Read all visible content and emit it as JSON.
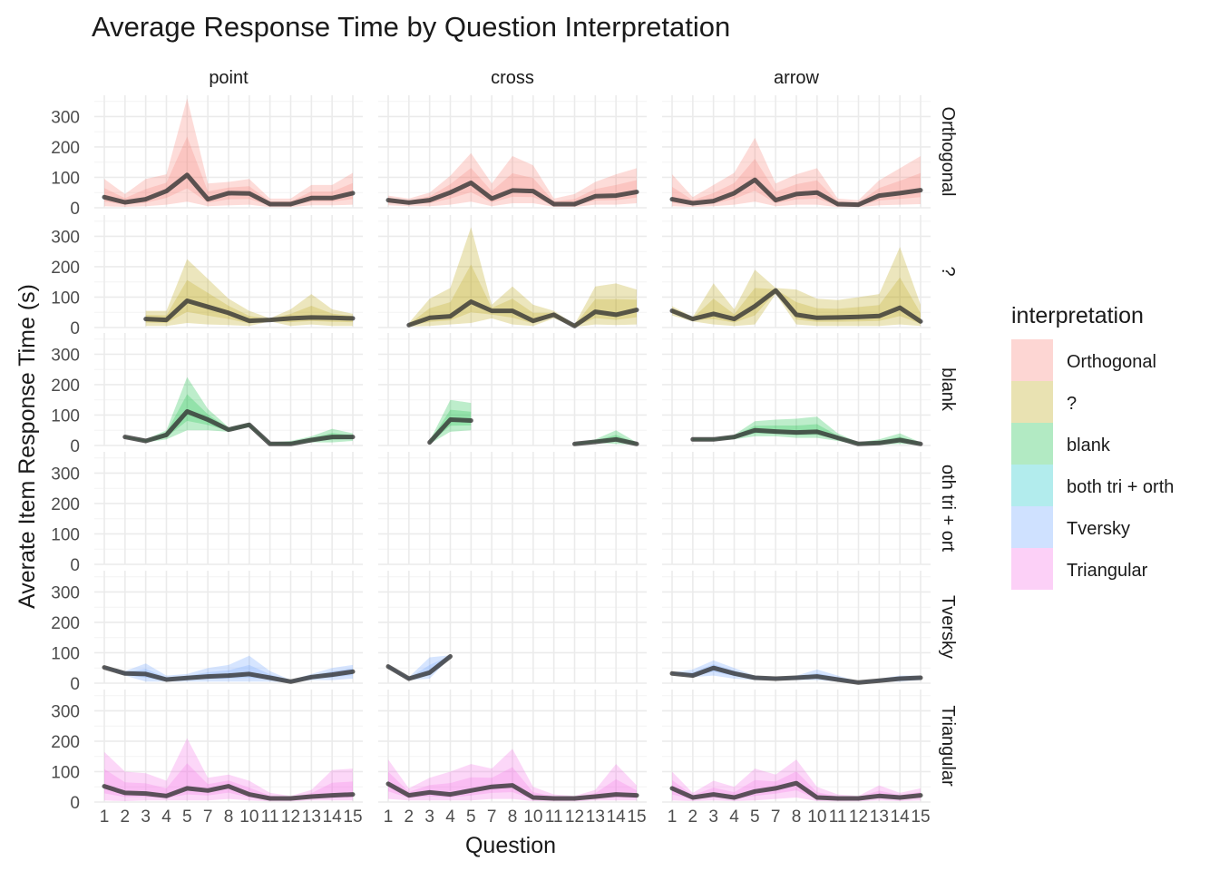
{
  "chart_data": {
    "type": "line",
    "title": "Average Response Time by Question Interpretation",
    "xlabel": "Question",
    "ylabel": "Averate Item Response Time (s)",
    "x_ticks": [
      "1",
      "2",
      "3",
      "4",
      "5",
      "7",
      "8",
      "10",
      "11",
      "12",
      "13",
      "14",
      "15"
    ],
    "y_ticks": [
      "0",
      "100",
      "200",
      "300"
    ],
    "ylim": [
      0,
      370
    ],
    "columns": [
      "point",
      "cross",
      "arrow"
    ],
    "rows": [
      "Orthogonal",
      "?",
      "blank",
      "both tri + orth",
      "Tversky",
      "Triangular"
    ],
    "row_strip_labels": [
      "Orthogonal",
      "?",
      "blank",
      "oth tri + ort",
      "Tversky",
      "Triangular"
    ],
    "legend": {
      "title": "interpretation",
      "entries": [
        {
          "label": "Orthogonal",
          "color": "#F8766D"
        },
        {
          "label": "?",
          "color": "#B79F00"
        },
        {
          "label": "blank",
          "color": "#00BA38"
        },
        {
          "label": "both tri + orth",
          "color": "#00BFC4"
        },
        {
          "label": "Tversky",
          "color": "#619CFF"
        },
        {
          "label": "Triangular",
          "color": "#F564E3"
        }
      ]
    },
    "panels": [
      {
        "row": "Orthogonal",
        "col": "point",
        "mean": [
          35,
          18,
          28,
          55,
          108,
          28,
          48,
          47,
          12,
          12,
          32,
          32,
          48
        ],
        "upper": [
          95,
          45,
          95,
          110,
          360,
          80,
          85,
          95,
          30,
          30,
          75,
          75,
          115
        ],
        "lower": [
          5,
          3,
          5,
          10,
          20,
          5,
          8,
          10,
          2,
          2,
          8,
          8,
          10
        ]
      },
      {
        "row": "Orthogonal",
        "col": "cross",
        "mean": [
          25,
          17,
          25,
          50,
          82,
          30,
          57,
          55,
          12,
          12,
          38,
          40,
          52
        ],
        "upper": [
          40,
          30,
          50,
          105,
          180,
          80,
          170,
          140,
          30,
          45,
          85,
          110,
          130
        ],
        "lower": [
          8,
          5,
          5,
          10,
          20,
          5,
          15,
          15,
          3,
          3,
          10,
          10,
          15
        ]
      },
      {
        "row": "Orthogonal",
        "col": "arrow",
        "mean": [
          28,
          15,
          22,
          48,
          92,
          25,
          45,
          50,
          12,
          10,
          40,
          48,
          58
        ],
        "upper": [
          110,
          35,
          75,
          115,
          230,
          80,
          110,
          130,
          30,
          25,
          90,
          130,
          170
        ],
        "lower": [
          5,
          3,
          5,
          10,
          20,
          5,
          10,
          10,
          2,
          2,
          8,
          10,
          12
        ]
      },
      {
        "row": "?",
        "col": "point",
        "mean": [
          null,
          null,
          28,
          25,
          88,
          68,
          48,
          22,
          25,
          30,
          33,
          32,
          30
        ],
        "upper": [
          null,
          null,
          55,
          55,
          225,
          160,
          95,
          55,
          30,
          60,
          110,
          60,
          45
        ],
        "lower": [
          null,
          null,
          5,
          5,
          15,
          10,
          8,
          5,
          20,
          5,
          10,
          5,
          5
        ]
      },
      {
        "row": "?",
        "col": "cross",
        "mean": [
          null,
          8,
          32,
          37,
          85,
          55,
          55,
          22,
          42,
          5,
          52,
          42,
          58
        ],
        "upper": [
          null,
          15,
          95,
          130,
          330,
          75,
          135,
          75,
          55,
          10,
          135,
          145,
          125
        ],
        "lower": [
          null,
          3,
          5,
          10,
          15,
          30,
          10,
          5,
          30,
          2,
          10,
          8,
          10
        ]
      },
      {
        "row": "?",
        "col": "arrow",
        "mean": [
          55,
          28,
          45,
          28,
          70,
          122,
          42,
          32,
          33,
          35,
          38,
          65,
          20
        ],
        "upper": [
          70,
          35,
          145,
          60,
          190,
          130,
          125,
          95,
          90,
          100,
          110,
          265,
          75
        ],
        "lower": [
          40,
          20,
          10,
          5,
          10,
          110,
          10,
          5,
          5,
          5,
          5,
          10,
          5
        ]
      },
      {
        "row": "blank",
        "col": "point",
        "mean": [
          null,
          28,
          15,
          35,
          112,
          85,
          52,
          68,
          5,
          5,
          18,
          28,
          28
        ],
        "upper": [
          null,
          30,
          20,
          50,
          225,
          120,
          60,
          75,
          10,
          15,
          30,
          55,
          40
        ],
        "lower": [
          null,
          25,
          10,
          20,
          50,
          50,
          45,
          60,
          2,
          2,
          10,
          10,
          15
        ]
      },
      {
        "row": "blank",
        "col": "cross",
        "mean": [
          20,
          null,
          10,
          85,
          82,
          null,
          56,
          null,
          null,
          5,
          12,
          20,
          5
        ],
        "upper": [
          22,
          null,
          15,
          150,
          140,
          null,
          100,
          null,
          null,
          8,
          20,
          50,
          10
        ],
        "lower": [
          18,
          null,
          5,
          45,
          50,
          null,
          35,
          null,
          null,
          3,
          8,
          5,
          2
        ]
      },
      {
        "row": "blank",
        "col": "arrow",
        "mean": [
          null,
          20,
          20,
          28,
          50,
          46,
          43,
          45,
          25,
          5,
          8,
          18,
          5
        ],
        "upper": [
          null,
          25,
          25,
          35,
          80,
          85,
          88,
          95,
          40,
          10,
          20,
          40,
          10
        ],
        "lower": [
          null,
          15,
          15,
          20,
          30,
          30,
          25,
          25,
          15,
          2,
          2,
          5,
          2
        ]
      },
      {
        "row": "both tri + orth",
        "col": "point",
        "mean": [],
        "upper": [],
        "lower": []
      },
      {
        "row": "both tri + orth",
        "col": "cross",
        "mean": [],
        "upper": [],
        "lower": []
      },
      {
        "row": "both tri + orth",
        "col": "arrow",
        "mean": [],
        "upper": [],
        "lower": []
      },
      {
        "row": "Tversky",
        "col": "point",
        "mean": [
          52,
          32,
          30,
          12,
          17,
          22,
          25,
          30,
          18,
          5,
          20,
          28,
          38
        ],
        "upper": [
          55,
          40,
          65,
          25,
          30,
          50,
          60,
          90,
          40,
          10,
          30,
          50,
          60
        ],
        "lower": [
          50,
          25,
          5,
          5,
          5,
          5,
          5,
          5,
          5,
          2,
          10,
          10,
          15
        ]
      },
      {
        "row": "Tversky",
        "col": "cross",
        "mean": [
          55,
          15,
          35,
          88,
          null,
          null,
          null,
          18,
          null,
          5,
          null,
          null,
          2
        ],
        "upper": [
          60,
          20,
          85,
          92,
          null,
          null,
          null,
          22,
          null,
          8,
          null,
          null,
          5
        ],
        "lower": [
          50,
          10,
          15,
          85,
          null,
          null,
          null,
          15,
          null,
          2,
          null,
          null,
          0
        ]
      },
      {
        "row": "Tversky",
        "col": "arrow",
        "mean": [
          32,
          25,
          50,
          32,
          18,
          15,
          18,
          22,
          12,
          2,
          8,
          15,
          18
        ],
        "upper": [
          35,
          45,
          75,
          50,
          25,
          20,
          25,
          45,
          25,
          5,
          15,
          25,
          25
        ],
        "lower": [
          30,
          20,
          25,
          15,
          10,
          10,
          10,
          10,
          5,
          0,
          5,
          5,
          10
        ]
      },
      {
        "row": "Triangular",
        "col": "point",
        "mean": [
          52,
          30,
          28,
          20,
          45,
          38,
          52,
          25,
          12,
          12,
          18,
          22,
          25
        ],
        "upper": [
          165,
          100,
          95,
          70,
          210,
          80,
          90,
          70,
          30,
          20,
          40,
          105,
          110
        ],
        "lower": [
          5,
          3,
          5,
          5,
          5,
          5,
          10,
          5,
          2,
          2,
          5,
          5,
          5
        ]
      },
      {
        "row": "Triangular",
        "col": "cross",
        "mean": [
          60,
          22,
          32,
          25,
          38,
          50,
          55,
          15,
          12,
          12,
          18,
          25,
          22
        ],
        "upper": [
          140,
          45,
          80,
          100,
          125,
          110,
          175,
          50,
          25,
          20,
          40,
          125,
          55
        ],
        "lower": [
          10,
          5,
          5,
          5,
          5,
          10,
          10,
          3,
          2,
          2,
          5,
          5,
          5
        ]
      },
      {
        "row": "Triangular",
        "col": "arrow",
        "mean": [
          45,
          15,
          25,
          15,
          35,
          45,
          62,
          15,
          12,
          12,
          20,
          15,
          22
        ],
        "upper": [
          100,
          30,
          70,
          50,
          110,
          90,
          140,
          50,
          25,
          20,
          55,
          30,
          45
        ],
        "lower": [
          5,
          3,
          5,
          3,
          5,
          10,
          15,
          3,
          2,
          2,
          5,
          3,
          5
        ]
      }
    ]
  }
}
